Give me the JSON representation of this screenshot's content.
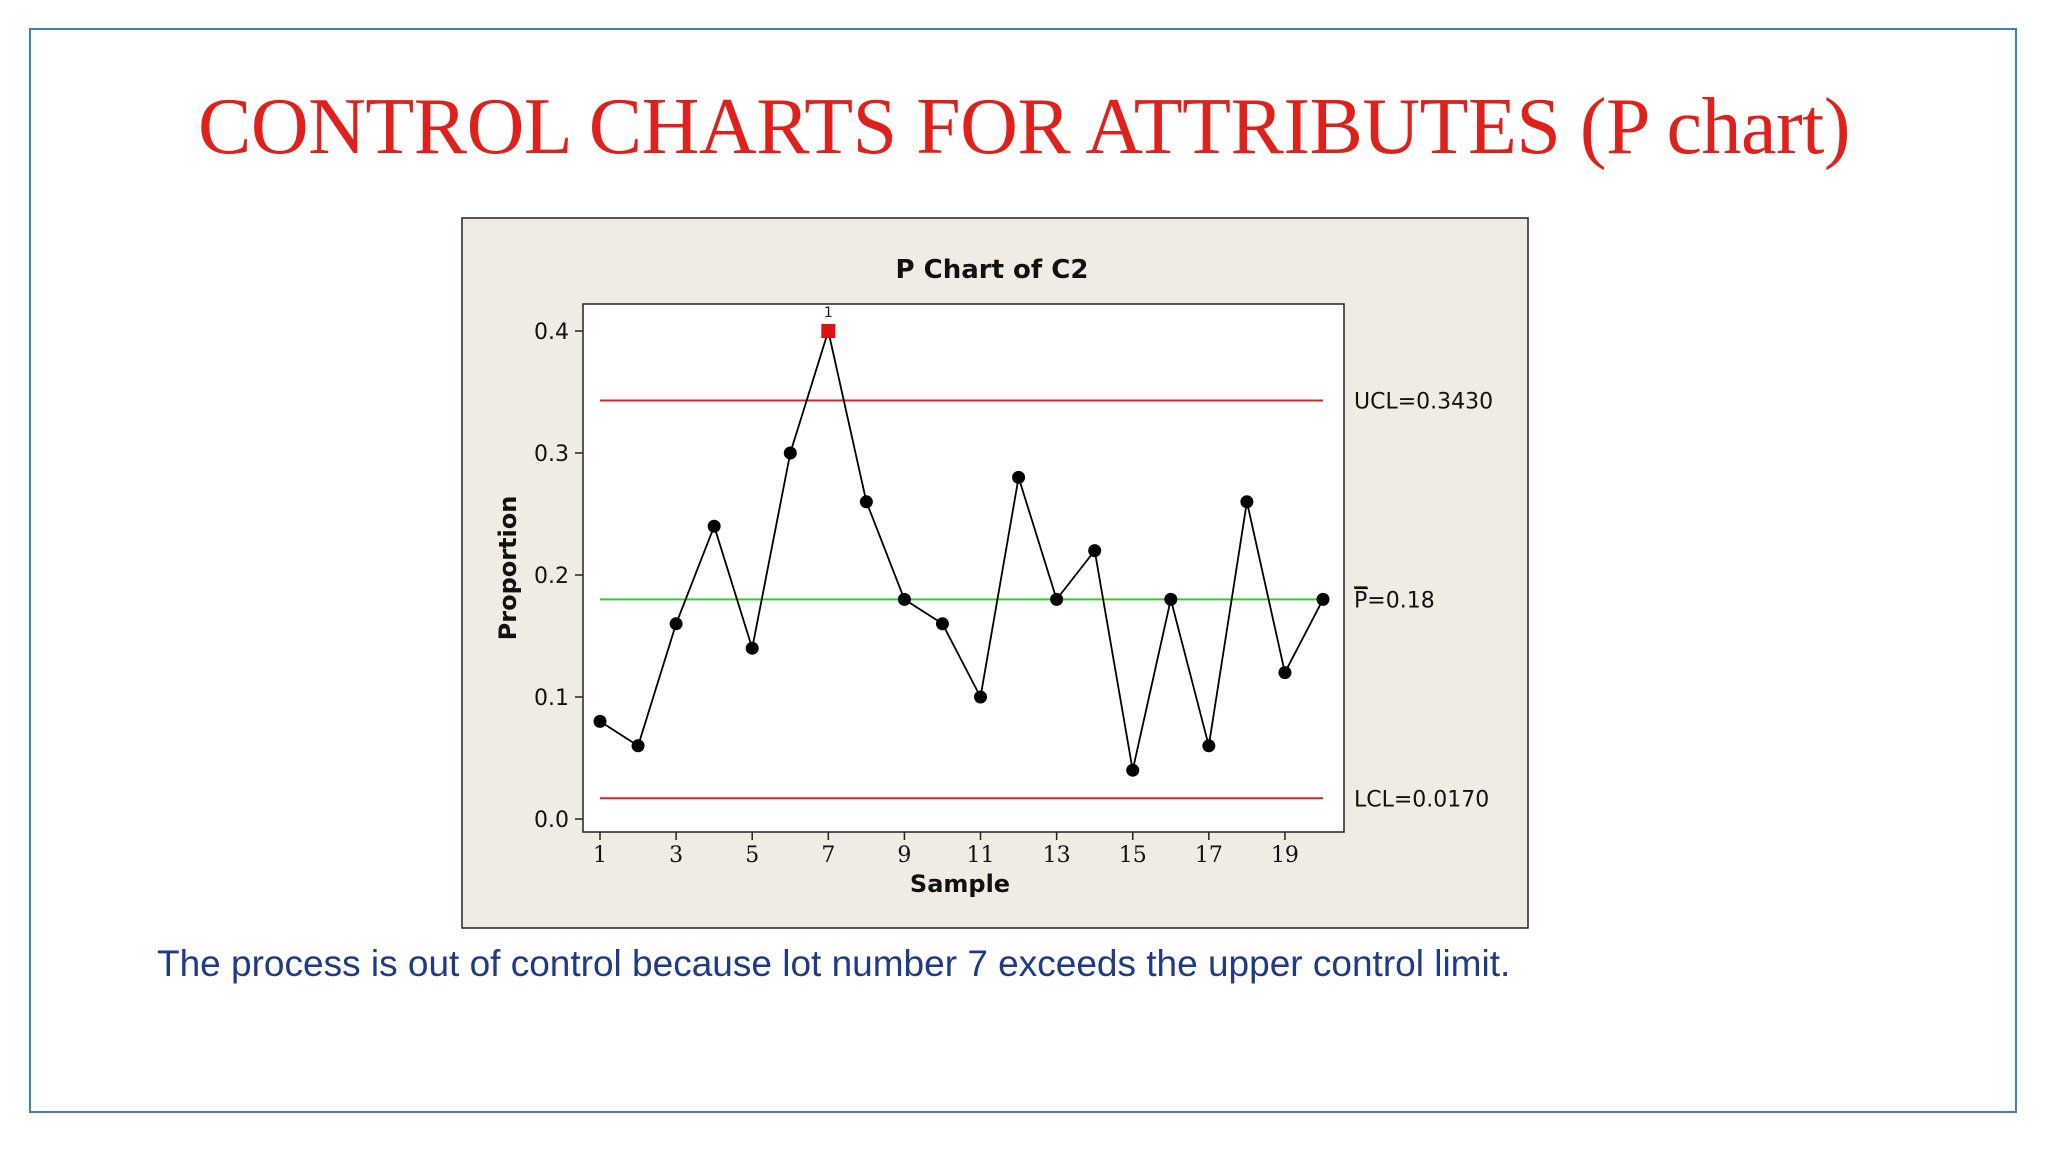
{
  "slide": {
    "title": "CONTROL CHARTS FOR ATTRIBUTES (P chart)",
    "caption": "The process is out of control because lot number 7 exceeds the upper control limit.",
    "colors": {
      "title": "#e0201b",
      "caption": "#1f3a86",
      "frame": "#3d7fbf"
    }
  },
  "chart_data": {
    "type": "line",
    "title": "P Chart of C2",
    "xlabel": "Sample",
    "ylabel": "Proportion",
    "x": [
      1,
      2,
      3,
      4,
      5,
      6,
      7,
      8,
      9,
      10,
      11,
      12,
      13,
      14,
      15,
      16,
      17,
      18,
      19,
      20
    ],
    "series": [
      {
        "values": [
          0.08,
          0.06,
          0.16,
          0.24,
          0.14,
          0.3,
          0.4,
          0.26,
          0.18,
          0.16,
          0.1,
          0.28,
          0.18,
          0.22,
          0.04,
          0.18,
          0.06,
          0.26,
          0.12,
          0.18
        ]
      }
    ],
    "x_ticks": [
      1,
      3,
      5,
      7,
      9,
      11,
      13,
      15,
      17,
      19
    ],
    "x_tick_labels": [
      "1",
      "3",
      "5",
      "7",
      "9",
      "11",
      "13",
      "15",
      "17",
      "19"
    ],
    "xlim": [
      1,
      20
    ],
    "y_ticks": [
      0.0,
      0.1,
      0.2,
      0.3,
      0.4
    ],
    "y_tick_labels": [
      "0.0",
      "0.1",
      "0.2",
      "0.3",
      "0.4"
    ],
    "ylim": [
      0.0,
      0.4
    ],
    "ucl": {
      "value": 0.343,
      "label": "UCL=0.3430",
      "color": "#e02020"
    },
    "center": {
      "value": 0.18,
      "label": "P=0.18",
      "label_prefix": "P",
      "label_suffix": "=0.18",
      "color": "#33cc33"
    },
    "lcl": {
      "value": 0.017,
      "label": "LCL=0.0170",
      "color": "#e02020"
    },
    "out_of_control": [
      {
        "x": 7,
        "value": 0.4,
        "flag": "1",
        "color": "#e01010"
      }
    ],
    "grid": false,
    "legend": "none",
    "colors": {
      "line": "#000000",
      "point": "#000000",
      "panel": "#f0ece4",
      "plot_bg": "#ffffff"
    }
  }
}
